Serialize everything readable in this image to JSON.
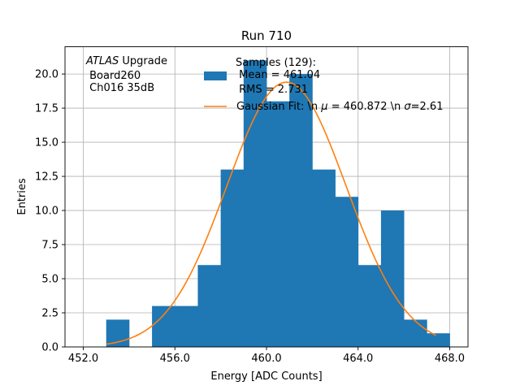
{
  "chart_data": {
    "type": "bar",
    "title": "Run 710",
    "xlabel": "Energy [ADC Counts]",
    "ylabel": "Entries",
    "xlim": [
      451.2,
      468.8
    ],
    "ylim": [
      0,
      22
    ],
    "grid": true,
    "xticks": [
      452.0,
      456.0,
      460.0,
      464.0,
      468.0
    ],
    "xtick_labels": [
      "452.0",
      "456.0",
      "460.0",
      "464.0",
      "468.0"
    ],
    "yticks": [
      0,
      2.5,
      5,
      7.5,
      10,
      12.5,
      15,
      17.5,
      20
    ],
    "ytick_labels": [
      "0.0",
      "2.5",
      "5.0",
      "7.5",
      "10.0",
      "12.5",
      "15.0",
      "17.5",
      "20.0"
    ],
    "bin_edges": [
      453,
      454,
      455,
      456,
      457,
      458,
      459,
      460,
      461,
      462,
      463,
      464,
      465,
      466,
      467,
      468
    ],
    "values": [
      2,
      0,
      3,
      3,
      6,
      13,
      21,
      18,
      20,
      13,
      11,
      6,
      10,
      2,
      1
    ],
    "bar_color": "#1f77b4",
    "fit": {
      "mu": 460.872,
      "sigma": 2.61,
      "amplitude": 19.4,
      "x_range": [
        453.0,
        467.4
      ],
      "color": "#ff7f0e"
    },
    "annotation": {
      "atlas": "ATLAS",
      "line1_rest": " Upgrade",
      "line2": " Board260",
      "line3": " Ch016 35dB"
    },
    "legend": {
      "placement": "top-right",
      "hist_line1": "Samples (129):",
      "hist_line2": " Mean = 461.04",
      "hist_line3": " RMS = 2.731",
      "fit_pre": "Gaussian Fit: \\n ",
      "fit_mu": "μ",
      "fit_mid": " = 460.872 \\n ",
      "fit_sigma": "σ",
      "fit_post": "=2.61"
    }
  }
}
